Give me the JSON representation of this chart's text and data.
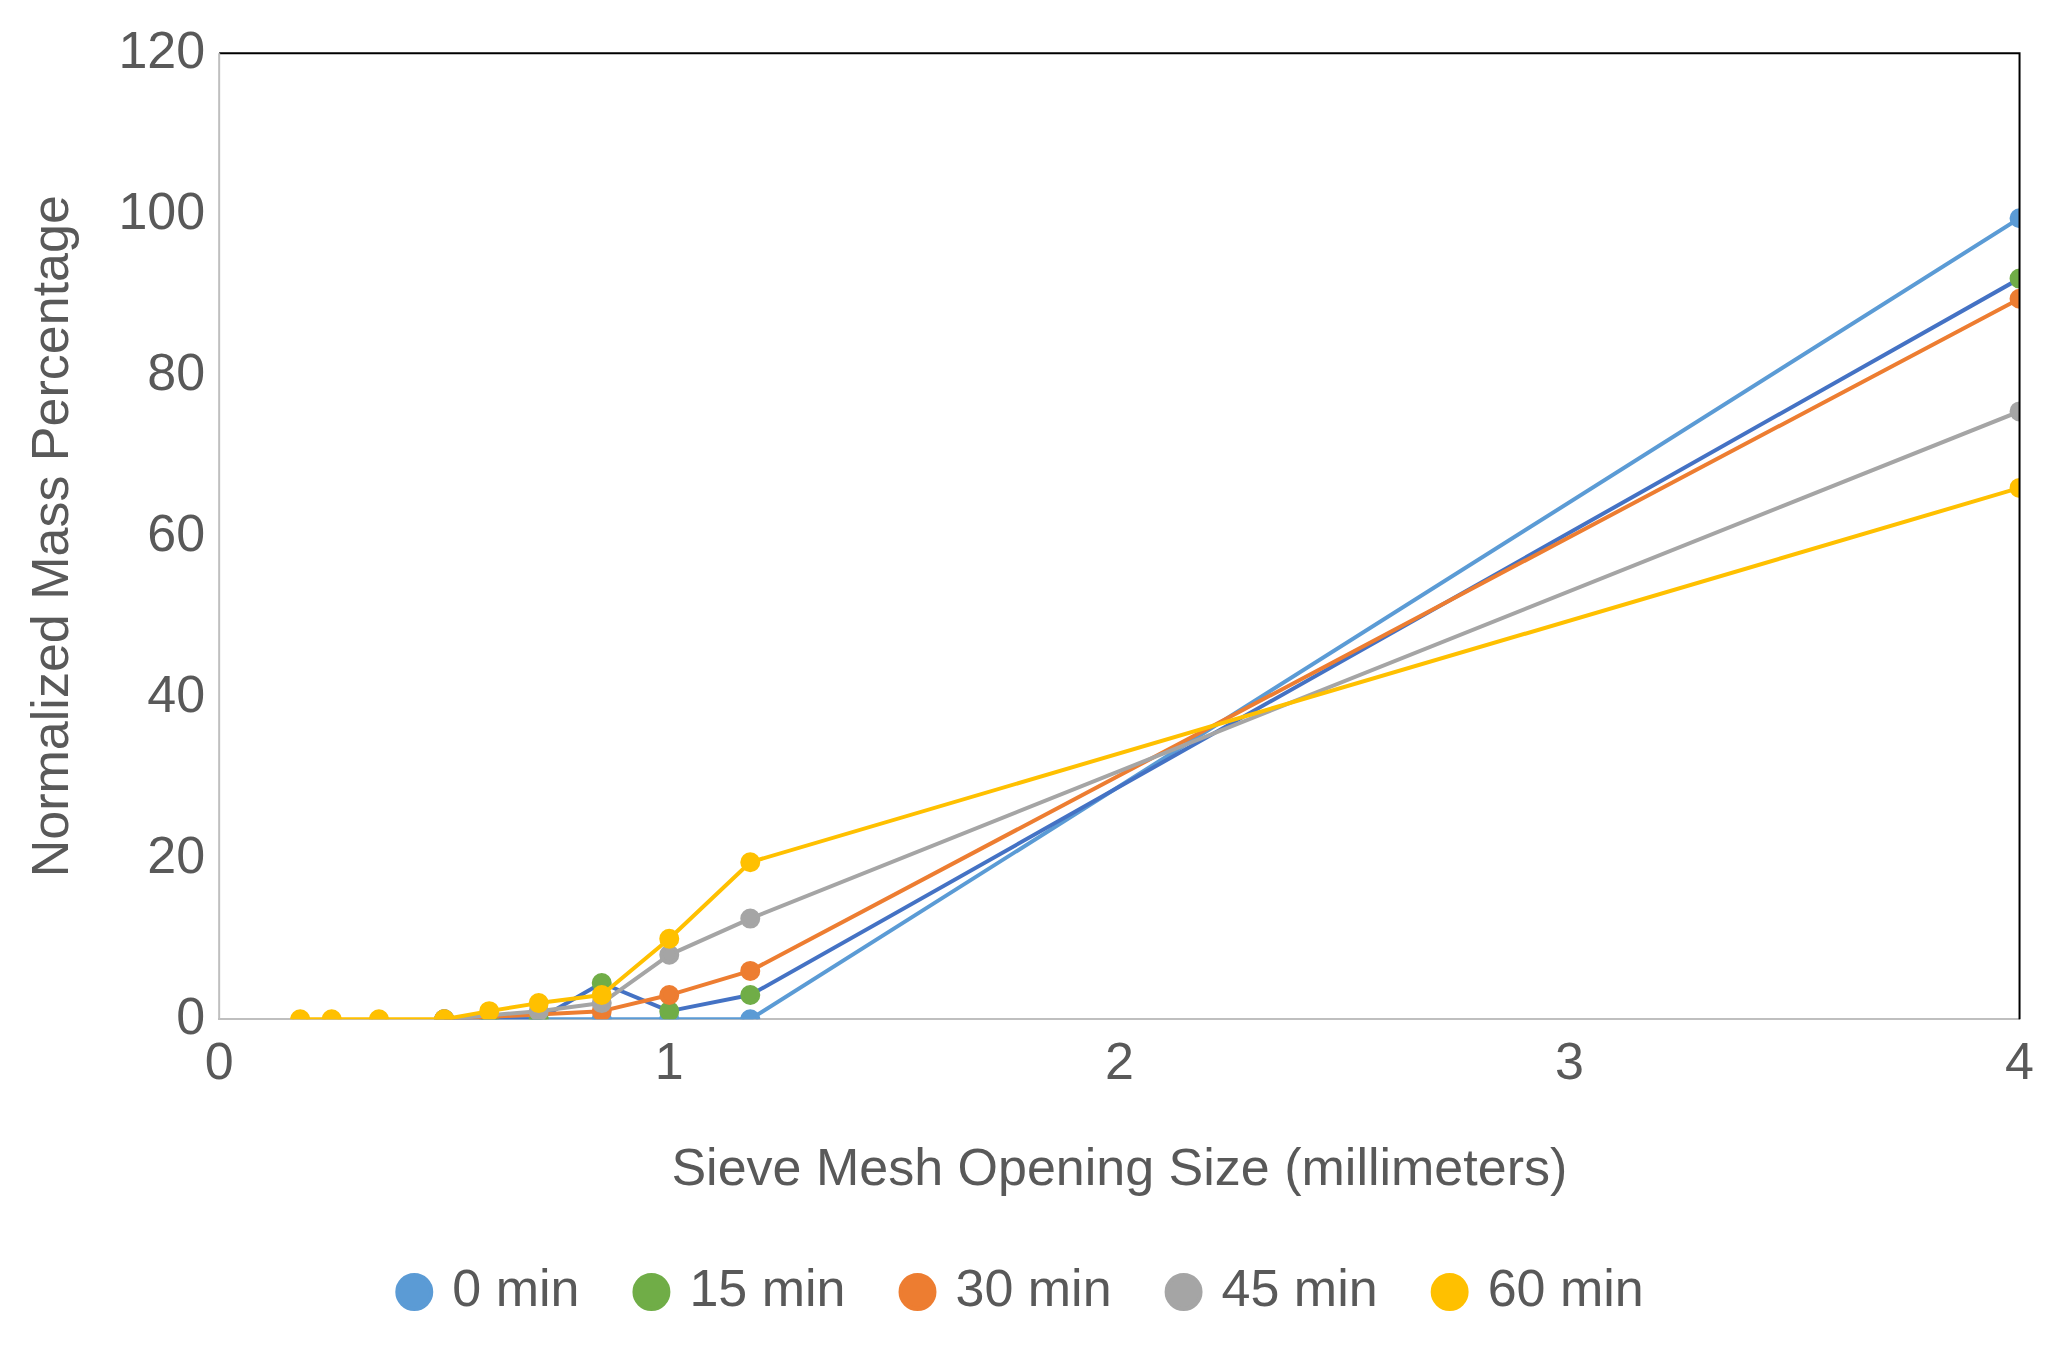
{
  "chart_data": {
    "type": "line",
    "xlabel": "Sieve Mesh Opening Size (millimeters)",
    "ylabel": "Normalized Mass Percentage",
    "x": [
      0.18,
      0.25,
      0.355,
      0.5,
      0.6,
      0.71,
      0.85,
      1.0,
      1.18,
      4.0
    ],
    "xlim": [
      0,
      4
    ],
    "xticks": [
      0,
      1,
      2,
      3,
      4
    ],
    "ylim": [
      0,
      120
    ],
    "yticks": [
      0,
      20,
      40,
      60,
      80,
      100,
      120
    ],
    "grid": false,
    "legend": "bottom",
    "marker": "circle",
    "line_style": "solid",
    "series": [
      {
        "name": "0 min",
        "color": "#5b9bd5",
        "values": [
          null,
          null,
          null,
          0,
          null,
          null,
          0,
          0,
          0,
          99.5
        ]
      },
      {
        "name": "15 min",
        "color": "#4472c4",
        "colors": [
          "#70ad47",
          "#70ad47",
          "#70ad47",
          "#70ad47",
          "#70ad47",
          "#70ad47",
          "#70ad47",
          "#70ad47",
          "#70ad47",
          "#70ad47"
        ],
        "values": [
          null,
          null,
          null,
          0,
          0,
          0,
          4.5,
          1,
          3,
          92
        ]
      },
      {
        "name": "30 min",
        "color": "#ed7d31",
        "values": [
          null,
          null,
          null,
          0,
          null,
          null,
          1,
          3,
          6,
          89.5
        ]
      },
      {
        "name": "45 min",
        "color": "#a5a5a5",
        "values": [
          null,
          null,
          null,
          0,
          null,
          1,
          2,
          8,
          12.5,
          75.5
        ]
      },
      {
        "name": "60 min",
        "color": "#ffc000",
        "values": [
          0,
          0,
          0,
          0,
          1,
          2,
          3,
          10,
          19.5,
          66
        ]
      }
    ]
  }
}
